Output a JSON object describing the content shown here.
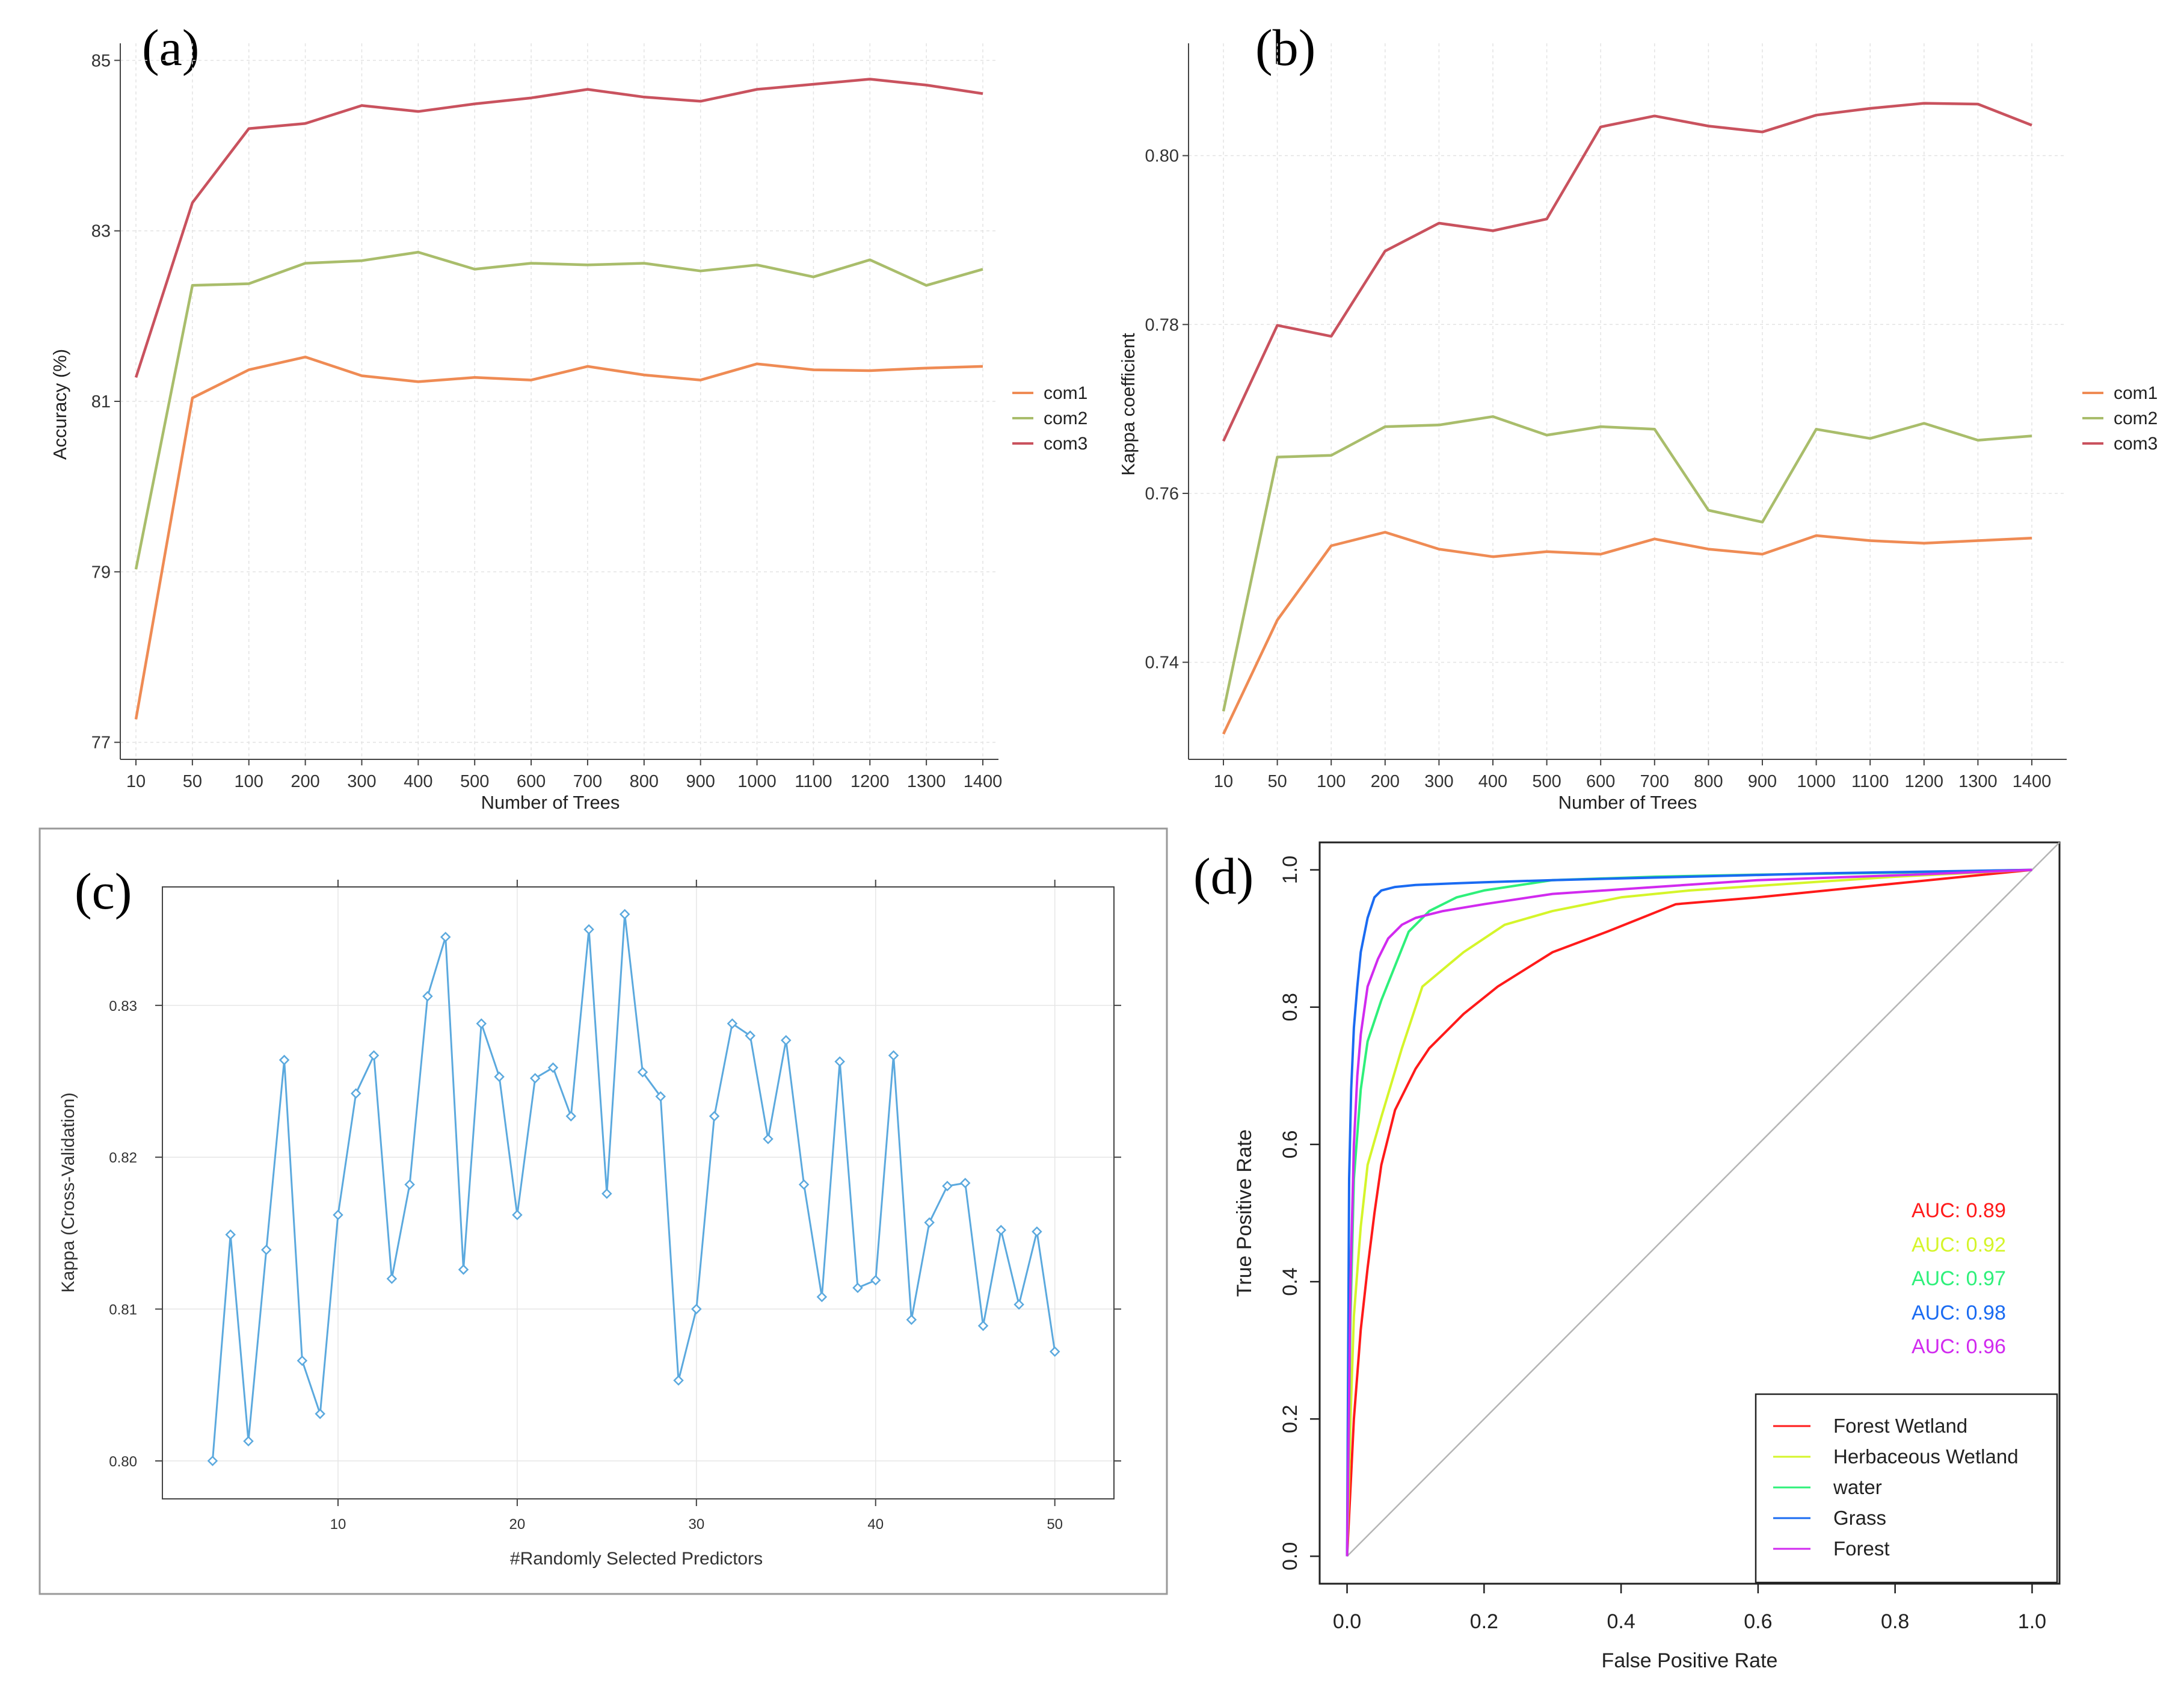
{
  "colors": {
    "com1": "#ef8b54",
    "com2": "#a9bd6b",
    "com3": "#c9525e",
    "cv_line": "#5ba9de",
    "forest_wetland": "#ff1a1a",
    "herbaceous_wetland": "#d5f52a",
    "water": "#2ef07a",
    "grass": "#1a6bf2",
    "forest": "#d12aef",
    "diagonal": "#b5b5b5"
  },
  "chart_data": [
    {
      "panel": "(a)",
      "type": "line",
      "xlabel": "Number of Trees",
      "ylabel": "Accuracy (%)",
      "categories": [
        "10",
        "50",
        "100",
        "200",
        "300",
        "400",
        "500",
        "600",
        "700",
        "800",
        "900",
        "1000",
        "1100",
        "1200",
        "1300",
        "1400"
      ],
      "yticks": [
        77,
        79,
        81,
        83,
        85
      ],
      "ylim": [
        76.8,
        85.2
      ],
      "grid": true,
      "legend_position": "right",
      "series": [
        {
          "name": "com1",
          "values": [
            77.27,
            81.04,
            81.37,
            81.52,
            81.3,
            81.23,
            81.28,
            81.25,
            81.41,
            81.31,
            81.25,
            81.44,
            81.37,
            81.36,
            81.39,
            81.41
          ]
        },
        {
          "name": "com2",
          "values": [
            79.03,
            82.36,
            82.38,
            82.62,
            82.65,
            82.75,
            82.55,
            82.62,
            82.6,
            82.62,
            82.53,
            82.6,
            82.46,
            82.66,
            82.36,
            82.55
          ]
        },
        {
          "name": "com3",
          "values": [
            81.28,
            83.33,
            84.2,
            84.26,
            84.47,
            84.4,
            84.49,
            84.56,
            84.66,
            84.57,
            84.52,
            84.66,
            84.72,
            84.78,
            84.71,
            84.61
          ]
        }
      ]
    },
    {
      "panel": "(b)",
      "type": "line",
      "xlabel": "Number of Trees",
      "ylabel": "Kappa coefficient",
      "categories": [
        "10",
        "50",
        "100",
        "200",
        "300",
        "400",
        "500",
        "600",
        "700",
        "800",
        "900",
        "1000",
        "1100",
        "1200",
        "1300",
        "1400"
      ],
      "yticks": [
        "0.74",
        "0.76",
        "0.78",
        "0.80"
      ],
      "ylim": [
        0.7285,
        0.8133
      ],
      "grid": true,
      "legend_position": "right",
      "series": [
        {
          "name": "com1",
          "values": [
            0.7315,
            0.745,
            0.7538,
            0.7554,
            0.7534,
            0.7525,
            0.7531,
            0.7528,
            0.7546,
            0.7534,
            0.7528,
            0.755,
            0.7544,
            0.7541,
            0.7544,
            0.7547
          ]
        },
        {
          "name": "com2",
          "values": [
            0.7342,
            0.7643,
            0.7645,
            0.7679,
            0.7681,
            0.7691,
            0.7669,
            0.7679,
            0.7676,
            0.758,
            0.7566,
            0.7676,
            0.7665,
            0.7683,
            0.7663,
            0.7668
          ]
        },
        {
          "name": "com3",
          "values": [
            0.7662,
            0.7799,
            0.7786,
            0.7887,
            0.792,
            0.7911,
            0.7925,
            0.8034,
            0.8047,
            0.8035,
            0.8028,
            0.8048,
            0.8056,
            0.8062,
            0.8061,
            0.8036
          ]
        }
      ]
    },
    {
      "panel": "(c)",
      "type": "line",
      "xlabel": "#Randomly Selected Predictors",
      "ylabel": "Kappa (Cross-Validation)",
      "xticks": [
        10,
        20,
        30,
        40,
        50
      ],
      "yticks": [
        "0.80",
        "0.81",
        "0.82",
        "0.83"
      ],
      "xlim": [
        0.2,
        53.3
      ],
      "ylim": [
        0.7975,
        0.8378
      ],
      "grid": true,
      "x": [
        3,
        4,
        5,
        6,
        7,
        8,
        9,
        10,
        11,
        12,
        13,
        14,
        15,
        16,
        17,
        18,
        19,
        20,
        21,
        22,
        23,
        24,
        25,
        26,
        27,
        28,
        29,
        30,
        31,
        32,
        33,
        34,
        35,
        36,
        37,
        38,
        39,
        40,
        41,
        42,
        43,
        44,
        45,
        46,
        47,
        48,
        49,
        50
      ],
      "y": [
        0.8,
        0.8149,
        0.8013,
        0.8139,
        0.8264,
        0.8066,
        0.8031,
        0.8162,
        0.8242,
        0.8267,
        0.812,
        0.8182,
        0.8306,
        0.8345,
        0.8126,
        0.8288,
        0.8253,
        0.8162,
        0.8252,
        0.8259,
        0.8227,
        0.835,
        0.8176,
        0.836,
        0.8256,
        0.824,
        0.8053,
        0.81,
        0.8227,
        0.8288,
        0.828,
        0.8212,
        0.8277,
        0.8182,
        0.8108,
        0.8263,
        0.8114,
        0.8119,
        0.8267,
        0.8093,
        0.8157,
        0.8181,
        0.8183,
        0.8089,
        0.8152,
        0.8103,
        0.8151,
        0.8072
      ]
    },
    {
      "panel": "(d)",
      "type": "line",
      "xlabel": "False Positive Rate",
      "ylabel": "True Positive Rate",
      "xticks": [
        "0.0",
        "0.2",
        "0.4",
        "0.6",
        "0.8",
        "1.0"
      ],
      "yticks": [
        "0.0",
        "0.2",
        "0.4",
        "0.6",
        "0.8",
        "1.0"
      ],
      "xlim": [
        -0.04,
        1.04
      ],
      "ylim": [
        -0.04,
        1.04
      ],
      "legend_position": "bottom-right",
      "auc_labels": [
        "AUC: 0.89",
        "AUC: 0.92",
        "AUC: 0.97",
        "AUC: 0.98",
        "AUC: 0.96"
      ],
      "series": [
        {
          "name": "Forest Wetland",
          "color_key": "forest_wetland",
          "x": [
            0,
            0.005,
            0.01,
            0.02,
            0.03,
            0.04,
            0.05,
            0.07,
            0.1,
            0.12,
            0.17,
            0.22,
            0.3,
            0.38,
            0.48,
            0.6,
            0.7,
            0.8,
            0.9,
            1.0
          ],
          "y": [
            0,
            0.1,
            0.2,
            0.33,
            0.42,
            0.5,
            0.57,
            0.65,
            0.71,
            0.74,
            0.79,
            0.83,
            0.88,
            0.91,
            0.95,
            0.96,
            0.97,
            0.98,
            0.99,
            1.0
          ]
        },
        {
          "name": "Herbaceous Wetland",
          "color_key": "herbaceous_wetland",
          "x": [
            0,
            0.005,
            0.01,
            0.02,
            0.03,
            0.05,
            0.08,
            0.11,
            0.17,
            0.23,
            0.3,
            0.4,
            0.5,
            0.65,
            0.8,
            1.0
          ],
          "y": [
            0,
            0.2,
            0.35,
            0.48,
            0.57,
            0.64,
            0.74,
            0.83,
            0.88,
            0.92,
            0.94,
            0.96,
            0.97,
            0.98,
            0.99,
            1.0
          ]
        },
        {
          "name": "water",
          "color_key": "water",
          "x": [
            0,
            0.005,
            0.01,
            0.02,
            0.03,
            0.05,
            0.07,
            0.09,
            0.12,
            0.16,
            0.2,
            0.3,
            0.45,
            0.6,
            0.8,
            1.0
          ],
          "y": [
            0,
            0.35,
            0.55,
            0.68,
            0.75,
            0.81,
            0.86,
            0.91,
            0.94,
            0.96,
            0.97,
            0.985,
            0.99,
            0.993,
            0.996,
            1.0
          ]
        },
        {
          "name": "Grass",
          "color_key": "grass",
          "x": [
            0,
            0.003,
            0.006,
            0.01,
            0.015,
            0.02,
            0.03,
            0.04,
            0.05,
            0.07,
            0.1,
            0.15,
            0.2,
            0.3,
            0.5,
            0.7,
            1.0
          ],
          "y": [
            0,
            0.55,
            0.68,
            0.77,
            0.83,
            0.88,
            0.93,
            0.96,
            0.97,
            0.975,
            0.978,
            0.98,
            0.982,
            0.985,
            0.99,
            0.995,
            1.0
          ]
        },
        {
          "name": "Forest",
          "color_key": "forest",
          "x": [
            0,
            0.005,
            0.01,
            0.015,
            0.02,
            0.03,
            0.045,
            0.06,
            0.08,
            0.1,
            0.14,
            0.2,
            0.3,
            0.45,
            0.6,
            0.8,
            1.0
          ],
          "y": [
            0,
            0.4,
            0.6,
            0.7,
            0.76,
            0.83,
            0.87,
            0.9,
            0.92,
            0.93,
            0.94,
            0.95,
            0.965,
            0.975,
            0.985,
            0.992,
            1.0
          ]
        }
      ]
    }
  ]
}
